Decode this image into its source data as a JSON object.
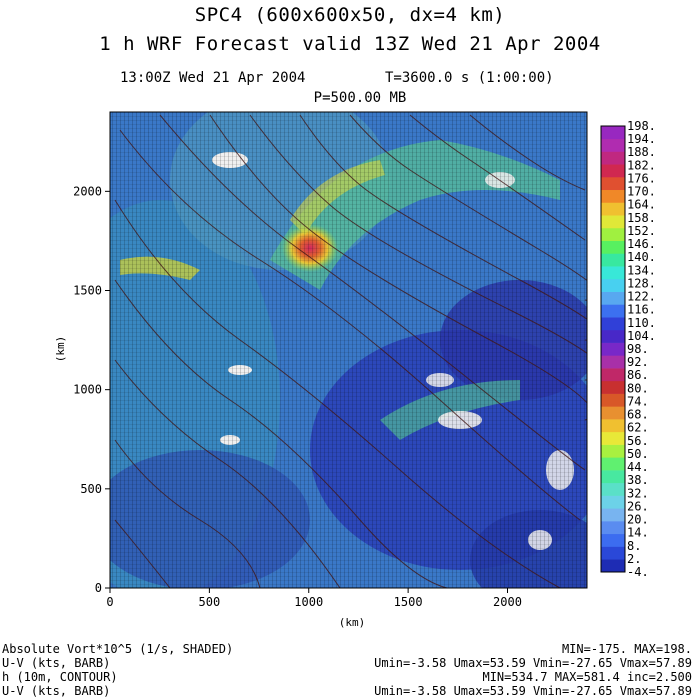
{
  "header": {
    "title_line1": "SPC4 (600x600x50, dx=4 km)",
    "title_line2": "1 h WRF Forecast valid 13Z Wed 21 Apr 2004",
    "valid_time": "13:00Z Wed 21 Apr 2004",
    "model_time": "T=3600.0 s (1:00:00)",
    "level": "P=500.00 MB"
  },
  "chart_data": {
    "type": "heatmap",
    "xlabel": "(km)",
    "ylabel": "(km)",
    "xlim": [
      0,
      2400
    ],
    "ylim": [
      0,
      2400
    ],
    "x_ticks": [
      "0",
      "500",
      "1000",
      "1500",
      "2000"
    ],
    "y_ticks": [
      "0",
      "500",
      "1000",
      "1500",
      "2000"
    ],
    "x_tick_values": [
      0,
      500,
      1000,
      1500,
      2000
    ],
    "y_tick_values": [
      0,
      500,
      1000,
      1500,
      2000
    ],
    "colorbar_labels": [
      "-4.",
      "2.",
      "8.",
      "14.",
      "20.",
      "26.",
      "32.",
      "38.",
      "44.",
      "50.",
      "56.",
      "62.",
      "68.",
      "74.",
      "80.",
      "86.",
      "92.",
      "98.",
      "104.",
      "110.",
      "116.",
      "122.",
      "128.",
      "134.",
      "140.",
      "146.",
      "152.",
      "158.",
      "164.",
      "170.",
      "176.",
      "182.",
      "188.",
      "194.",
      "198."
    ],
    "colorbar_colors": [
      "#1e2cb4",
      "#2a48d8",
      "#3c6cf0",
      "#5a8cf0",
      "#78b4f0",
      "#6cd2e8",
      "#5ae0c8",
      "#48e8a0",
      "#60f070",
      "#a8f040",
      "#e8e838",
      "#f0c030",
      "#e89030",
      "#d85828",
      "#c83030",
      "#c02868",
      "#a830a8",
      "#7828c8",
      "#4828c8",
      "#3040d8",
      "#3c70f0",
      "#58a8f0",
      "#48d0f0",
      "#38e8d8",
      "#38e8a0",
      "#58f060",
      "#a0f040",
      "#e0e838",
      "#f0c030",
      "#f08828",
      "#e05030",
      "#d02850",
      "#c02880",
      "#b02cb0",
      "#9828c0"
    ]
  },
  "footer": {
    "row1_left": "Absolute Vort*10^5 (1/s, SHADED)",
    "row1_right": "MIN=-175. MAX=198.",
    "row2_left": "U-V (kts, BARB)",
    "row2_right": "Umin=-3.58 Umax=53.59 Vmin=-27.65 Vmax=57.89",
    "row3_left": "h (10m, CONTOUR)",
    "row3_right": "MIN=534.7 MAX=581.4 inc=2.500",
    "row4_left": "U-V (kts, BARB)",
    "row4_right": "Umin=-3.58 Umax=53.59 Vmin=-27.65 Vmax=57.89"
  }
}
